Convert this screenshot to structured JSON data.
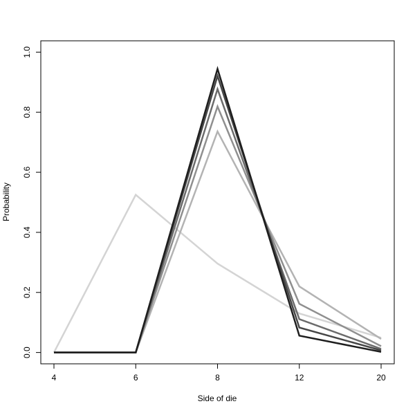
{
  "chart_data": {
    "type": "line",
    "x_label": "Side of die",
    "y_label": "Probability",
    "categories": [
      "4",
      "6",
      "8",
      "12",
      "20"
    ],
    "series": [
      {
        "color": "#d4d4d4",
        "values": [
          0,
          0.525,
          0.296,
          0.13,
          0.049
        ]
      },
      {
        "color": "#b3b3b3",
        "values": [
          0,
          0,
          0.736,
          0.22,
          0.045
        ]
      },
      {
        "color": "#8f8f8f",
        "values": [
          0,
          0,
          0.819,
          0.162,
          0.021
        ]
      },
      {
        "color": "#6b6b6b",
        "values": [
          0,
          0,
          0.877,
          0.111,
          0.012
        ]
      },
      {
        "color": "#464646",
        "values": [
          0,
          0,
          0.921,
          0.083,
          0.007
        ]
      },
      {
        "color": "#1e1e1e",
        "values": [
          0,
          0,
          0.944,
          0.056,
          0.002
        ]
      }
    ],
    "ylim": [
      -0.0377,
      1.0377
    ],
    "yticks": [
      {
        "value": 0,
        "label": "0.0"
      },
      {
        "value": 0.2,
        "label": "0.2"
      },
      {
        "value": 0.4,
        "label": "0.4"
      },
      {
        "value": 0.6,
        "label": "0.6"
      },
      {
        "value": 0.8,
        "label": "0.8"
      },
      {
        "value": 1,
        "label": "1.0"
      }
    ],
    "grid": false
  }
}
